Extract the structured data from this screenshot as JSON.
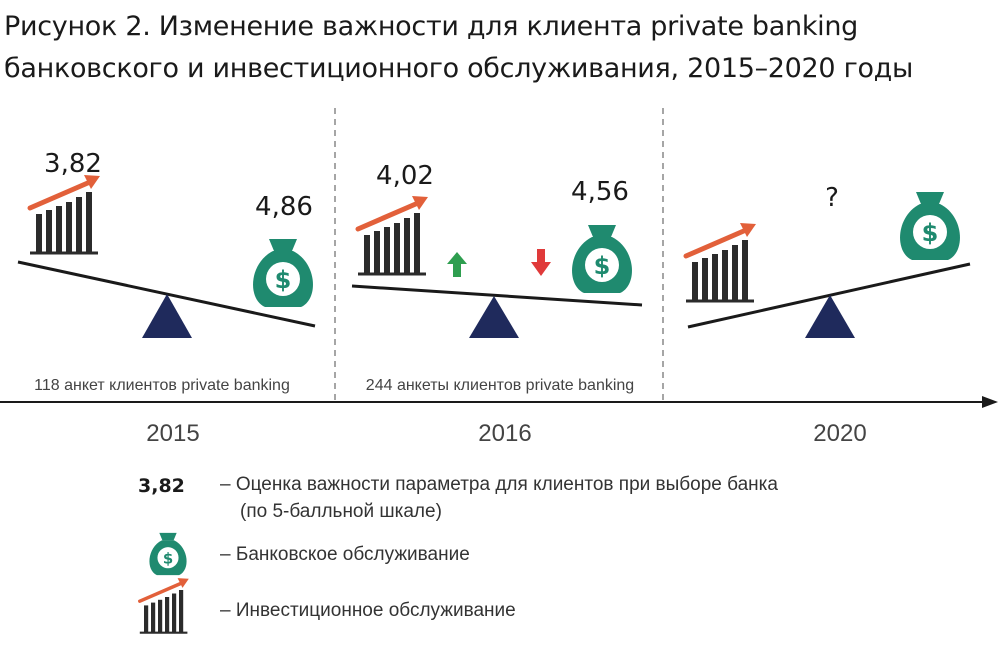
{
  "title": {
    "line1": "Рисунок 2. Изменение важности для клиента private banking",
    "line2": "банковского и инвестиционного обслуживания, 2015–2020 годы"
  },
  "panels": [
    {
      "year": "2015",
      "investment_score": "3,82",
      "banking_score": "4,86",
      "survey_note": "118 анкет клиентов private banking"
    },
    {
      "year": "2016",
      "investment_score": "4,02",
      "banking_score": "4,56",
      "survey_note": "244 анкеты клиентов private banking"
    },
    {
      "year": "2020",
      "unknown_mark": "?"
    }
  ],
  "legend": {
    "score_sample": "3,82",
    "score_text_line1": "– Оценка важности параметра для клиентов при выборе банка",
    "score_text_line2": "(по 5-балльной шкале)",
    "banking_text": "– Банковское обслуживание",
    "investment_text": "– Инвестиционное обслуживание"
  },
  "colors": {
    "bank_bag": "#1f8a6f",
    "chart_bars": "#2b2b2b",
    "trend_arrow": "#e2603a",
    "fulcrum": "#1f2a5c",
    "arrow_up": "#2e9e4f",
    "arrow_down": "#e03a3a"
  }
}
